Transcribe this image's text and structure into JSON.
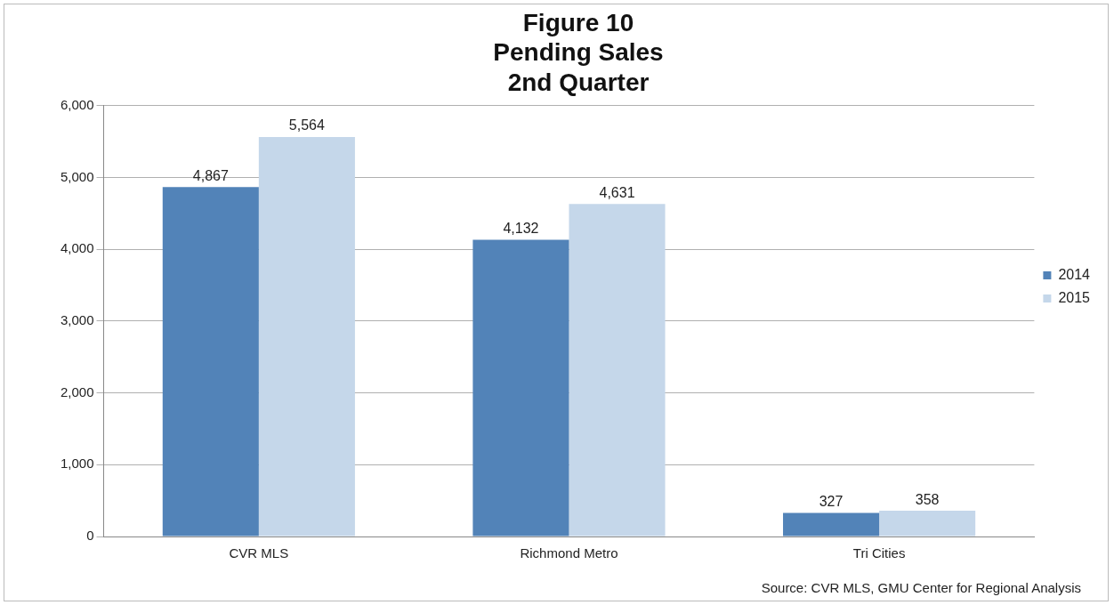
{
  "chart_data": {
    "type": "bar",
    "title": "Figure 10\nPending Sales\n2nd Quarter",
    "categories": [
      "CVR MLS",
      "Richmond Metro",
      "Tri Cities"
    ],
    "series": [
      {
        "name": "2014",
        "color": "#5283b8",
        "values": [
          4867,
          4132,
          327
        ],
        "value_labels": [
          "4,867",
          "4,132",
          "327"
        ]
      },
      {
        "name": "2015",
        "color": "#c5d7ea",
        "values": [
          5564,
          4631,
          358
        ],
        "value_labels": [
          "5,564",
          "4,631",
          "358"
        ]
      }
    ],
    "ylim": [
      0,
      6000
    ],
    "yticks": [
      {
        "value": 0,
        "label": "0"
      },
      {
        "value": 1000,
        "label": "1,000"
      },
      {
        "value": 2000,
        "label": "2,000"
      },
      {
        "value": 3000,
        "label": "3,000"
      },
      {
        "value": 4000,
        "label": "4,000"
      },
      {
        "value": 5000,
        "label": "5,000"
      },
      {
        "value": 6000,
        "label": "6,000"
      }
    ],
    "grid": "y",
    "legend": "right",
    "annotations": [
      "Source: CVR MLS, GMU Center for Regional Analysis"
    ]
  }
}
